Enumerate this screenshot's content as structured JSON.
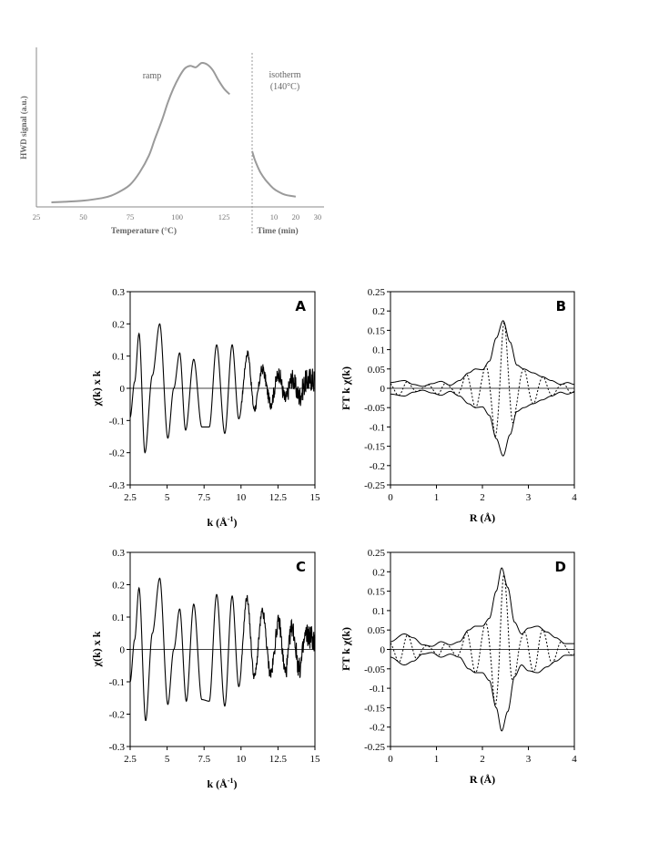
{
  "chart_data": [
    {
      "type": "line",
      "id": "tpd",
      "ylabel": "HWD signal (a.u.)",
      "xlabel": "Temperature (°C)",
      "xlabel2": "Time (min)",
      "annot_ramp": "ramp",
      "annot_iso": "isotherm",
      "annot_iso_temp": "(140°C)",
      "temp_ticks": [
        "25",
        "50",
        "75",
        "100",
        "125"
      ],
      "time_ticks": [
        "10",
        "20",
        "30"
      ],
      "time_ticks_pos": [
        10,
        20,
        30
      ],
      "temp_range": [
        25,
        140
      ],
      "time_range": [
        0,
        33
      ],
      "grid": false,
      "series": [
        {
          "segment": "ramp",
          "x": [
            33,
            40,
            50,
            60,
            65,
            70,
            75,
            80,
            85,
            88,
            92,
            95,
            98,
            101,
            104,
            107,
            110,
            113,
            116,
            119,
            122,
            125,
            128
          ],
          "y": [
            0.0,
            0.004,
            0.012,
            0.03,
            0.048,
            0.08,
            0.125,
            0.21,
            0.33,
            0.44,
            0.58,
            0.7,
            0.8,
            0.88,
            0.94,
            0.96,
            0.95,
            0.98,
            0.97,
            0.93,
            0.86,
            0.8,
            0.76
          ]
        },
        {
          "segment": "isotherm",
          "x": [
            0,
            1,
            2,
            3,
            4,
            6,
            8,
            10,
            12,
            14,
            16,
            18,
            20
          ],
          "y": [
            0.36,
            0.31,
            0.27,
            0.235,
            0.205,
            0.16,
            0.125,
            0.095,
            0.075,
            0.06,
            0.05,
            0.045,
            0.04
          ]
        }
      ]
    },
    {
      "type": "line",
      "id": "A",
      "panel": "A",
      "xlabel": "k (Å",
      "xlabel_sup": "-1",
      "xlabel_close": ")",
      "ylabel": "χ(k) x k",
      "xlim": [
        2.5,
        15
      ],
      "ylim": [
        -0.3,
        0.3
      ],
      "xticks": [
        "2.5",
        "5",
        "7.5",
        "10",
        "12.5",
        "15"
      ],
      "xticks_pos": [
        2.5,
        5,
        7.5,
        10,
        12.5,
        15
      ],
      "yticks": [
        "0.3",
        "0.2",
        "0.1",
        "0",
        "-0.1",
        "-0.2",
        "-0.3"
      ],
      "yticks_pos": [
        0.3,
        0.2,
        0.1,
        0,
        -0.1,
        -0.2,
        -0.3
      ],
      "grid": false,
      "series": [
        {
          "x": [
            2.5,
            2.8,
            3.1,
            3.5,
            4.0,
            4.5,
            5.05,
            5.45,
            5.85,
            6.25,
            6.8,
            7.35,
            7.85,
            8.35,
            8.9,
            9.4,
            9.85,
            10.45,
            10.9,
            11.45,
            12.0,
            12.55,
            13.0,
            13.45,
            13.95,
            14.4,
            14.75,
            15.0
          ],
          "y": [
            -0.09,
            0.02,
            0.17,
            -0.2,
            0.04,
            0.2,
            -0.155,
            0.0,
            0.11,
            -0.13,
            0.09,
            -0.12,
            -0.12,
            0.135,
            -0.14,
            0.135,
            -0.095,
            0.11,
            -0.065,
            0.06,
            -0.045,
            0.045,
            -0.035,
            0.03,
            -0.025,
            0.02,
            0.03,
            0.02
          ]
        }
      ]
    },
    {
      "type": "line",
      "id": "B",
      "panel": "B",
      "xlabel": "R (Å)",
      "ylabel": "FT k χ(k)",
      "xlim": [
        0,
        4
      ],
      "ylim": [
        -0.25,
        0.25
      ],
      "xticks": [
        "0",
        "1",
        "2",
        "3",
        "4"
      ],
      "xticks_pos": [
        0,
        1,
        2,
        3,
        4
      ],
      "yticks": [
        "0.25",
        "0.2",
        "0.15",
        "0.1",
        "0.05",
        "0",
        "-0.05",
        "-0.1",
        "-0.15",
        "-0.2",
        "-0.25"
      ],
      "yticks_pos": [
        0.25,
        0.2,
        0.15,
        0.1,
        0.05,
        0,
        -0.05,
        -0.1,
        -0.15,
        -0.2,
        -0.25
      ],
      "grid": false,
      "envelope": {
        "x": [
          0,
          0.3,
          0.5,
          0.7,
          0.9,
          1.1,
          1.3,
          1.5,
          1.7,
          1.85,
          2.0,
          2.15,
          2.3,
          2.45,
          2.6,
          2.75,
          2.9,
          3.1,
          3.3,
          3.5,
          3.7,
          3.85,
          4.0
        ],
        "y": [
          0.015,
          0.02,
          0.01,
          0.005,
          0.012,
          0.018,
          0.008,
          0.02,
          0.04,
          0.05,
          0.048,
          0.07,
          0.13,
          0.175,
          0.12,
          0.06,
          0.05,
          0.04,
          0.03,
          0.02,
          0.01,
          0.015,
          0.01
        ]
      }
    },
    {
      "type": "line",
      "id": "C",
      "panel": "C",
      "xlabel": "k (Å",
      "xlabel_sup": "-1",
      "xlabel_close": ")",
      "ylabel": "χ(k) x k",
      "xlim": [
        2.5,
        15
      ],
      "ylim": [
        -0.3,
        0.3
      ],
      "xticks": [
        "2.5",
        "5",
        "7.5",
        "10",
        "12.5",
        "15"
      ],
      "xticks_pos": [
        2.5,
        5,
        7.5,
        10,
        12.5,
        15
      ],
      "yticks": [
        "0.3",
        "0.2",
        "0.1",
        "0",
        "-0.1",
        "-0.2",
        "-0.3"
      ],
      "yticks_pos": [
        0.3,
        0.2,
        0.1,
        0,
        -0.1,
        -0.2,
        -0.3
      ],
      "grid": false,
      "series": [
        {
          "x": [
            2.5,
            2.8,
            3.1,
            3.55,
            4.0,
            4.5,
            5.05,
            5.45,
            5.85,
            6.3,
            6.8,
            7.35,
            7.85,
            8.35,
            8.9,
            9.4,
            9.85,
            10.4,
            10.9,
            11.45,
            12.0,
            12.55,
            13.0,
            13.45,
            13.95,
            14.4,
            14.75,
            15.0
          ],
          "y": [
            -0.1,
            0.03,
            0.19,
            -0.22,
            0.05,
            0.22,
            -0.17,
            0.0,
            0.125,
            -0.16,
            0.14,
            -0.155,
            -0.16,
            0.17,
            -0.175,
            0.165,
            -0.115,
            0.16,
            -0.085,
            0.115,
            -0.075,
            0.085,
            -0.07,
            0.07,
            -0.06,
            0.045,
            0.04,
            0.02
          ]
        }
      ]
    },
    {
      "type": "line",
      "id": "D",
      "panel": "D",
      "xlabel": "R (Å)",
      "ylabel": "FT k χ(k)",
      "xlim": [
        0,
        4
      ],
      "ylim": [
        -0.25,
        0.25
      ],
      "xticks": [
        "0",
        "1",
        "2",
        "3",
        "4"
      ],
      "xticks_pos": [
        0,
        1,
        2,
        3,
        4
      ],
      "yticks": [
        "0.25",
        "0.2",
        "0.15",
        "0.1",
        "0.05",
        "0",
        "-0.05",
        "-0.1",
        "-0.15",
        "-0.2",
        "-0.25"
      ],
      "yticks_pos": [
        0.25,
        0.2,
        0.15,
        0.1,
        0.05,
        0,
        -0.05,
        -0.1,
        -0.15,
        -0.2,
        -0.25
      ],
      "grid": false,
      "envelope": {
        "x": [
          0,
          0.3,
          0.5,
          0.7,
          0.9,
          1.1,
          1.3,
          1.5,
          1.7,
          1.85,
          2.0,
          2.15,
          2.3,
          2.42,
          2.55,
          2.7,
          2.85,
          3.0,
          3.2,
          3.4,
          3.6,
          3.8,
          4.0
        ],
        "y": [
          0.02,
          0.04,
          0.03,
          0.012,
          0.008,
          0.02,
          0.012,
          0.02,
          0.05,
          0.06,
          0.06,
          0.08,
          0.15,
          0.21,
          0.16,
          0.07,
          0.04,
          0.055,
          0.06,
          0.045,
          0.03,
          0.015,
          0.015
        ]
      }
    }
  ]
}
